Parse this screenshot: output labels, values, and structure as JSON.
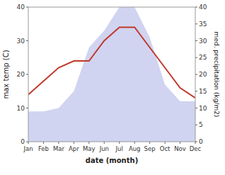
{
  "chart_data": {
    "type": "line",
    "categories": [
      "Jan",
      "Feb",
      "Mar",
      "Apr",
      "May",
      "Jun",
      "Jul",
      "Aug",
      "Sep",
      "Oct",
      "Nov",
      "Dec"
    ],
    "xlabel": "date (month)",
    "ylabel": "max temp (C)",
    "y2label": "med. precipitation (kg/m2)",
    "series": [
      {
        "type": "area",
        "axis": "y2",
        "color": "#b0b8e8",
        "values": [
          9,
          9,
          10,
          15,
          28,
          33,
          40,
          40,
          31,
          17,
          12,
          12
        ]
      },
      {
        "type": "line",
        "color": "#c0392b",
        "values": [
          14,
          18,
          22,
          24,
          24,
          30,
          34,
          34,
          28,
          22,
          16,
          13
        ]
      }
    ],
    "ylim": [
      0,
      40
    ],
    "yticks": [
      0,
      10,
      20,
      30,
      40
    ],
    "y2lim": [
      0,
      40
    ],
    "y2ticks": [
      0,
      5,
      10,
      15,
      20,
      25,
      30,
      35,
      40
    ],
    "grid": false
  }
}
